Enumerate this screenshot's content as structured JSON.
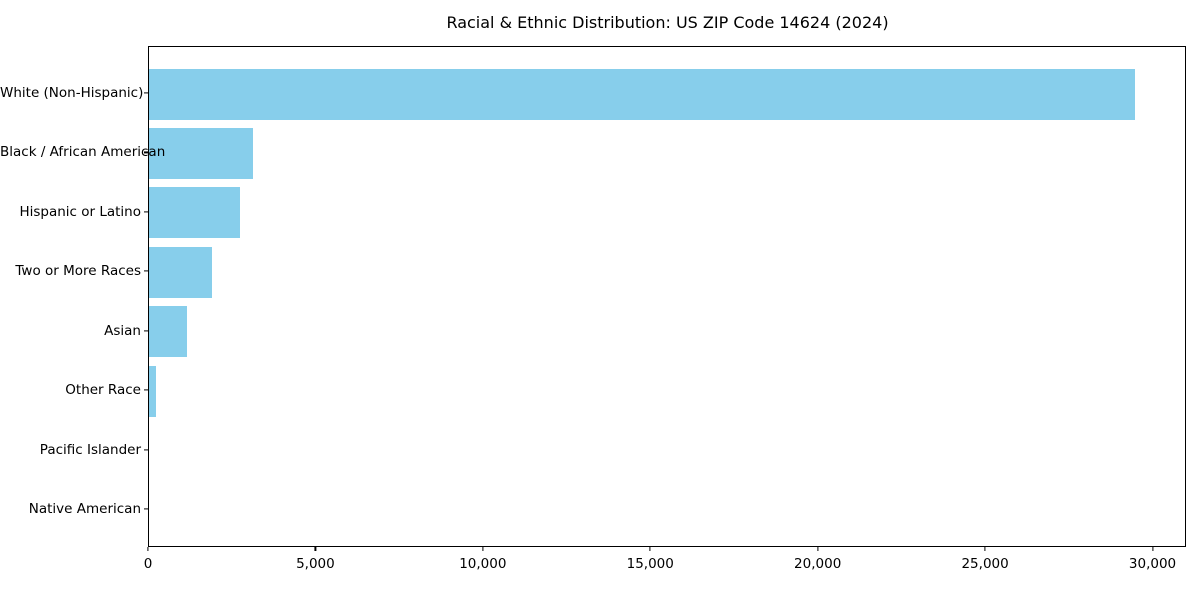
{
  "title": "Racial & Ethnic Distribution: US ZIP Code 14624 (2024)",
  "colors": {
    "bar": "#87CEEB",
    "axis": "#000000",
    "text": "#000000",
    "background": "#FFFFFF"
  },
  "chart_data": {
    "type": "bar",
    "orientation": "horizontal",
    "title": "Racial & Ethnic Distribution: US ZIP Code 14624 (2024)",
    "xlabel": "",
    "ylabel": "",
    "categories": [
      "White (Non-Hispanic)",
      "Black / African American",
      "Hispanic or Latino",
      "Two or More Races",
      "Asian",
      "Other Race",
      "Pacific Islander",
      "Native American"
    ],
    "values": [
      29500,
      3100,
      2720,
      1880,
      1130,
      195,
      0,
      0
    ],
    "bar_color": "#87CEEB",
    "xlim": [
      0,
      31000
    ],
    "xticks": [
      0,
      5000,
      10000,
      15000,
      20000,
      25000,
      30000
    ],
    "xtick_labels": [
      "0",
      "5,000",
      "10,000",
      "15,000",
      "20,000",
      "25,000",
      "30,000"
    ],
    "grid": false,
    "legend": null
  }
}
